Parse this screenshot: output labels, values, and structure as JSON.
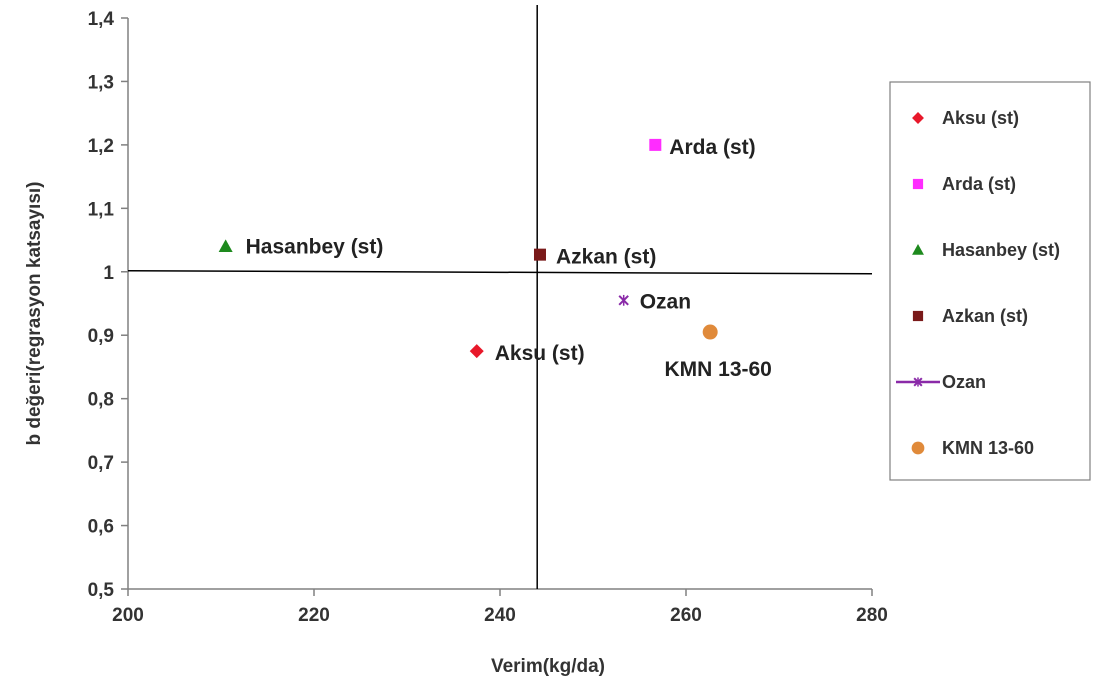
{
  "chart_data": {
    "type": "scatter",
    "xlabel": "Verim(kg/da)",
    "ylabel": "b değeri(regrasyon katsayısı)",
    "xlim": [
      200,
      280
    ],
    "ylim": [
      0.5,
      1.4
    ],
    "x_ticks": [
      "200",
      "220",
      "240",
      "260",
      "280"
    ],
    "y_ticks": [
      "0,5",
      "0,6",
      "0,7",
      "0,8",
      "0,9",
      "1",
      "1,1",
      "1,2",
      "1,3",
      "1,4"
    ],
    "reference_lines": {
      "vertical_x": 244,
      "horizontal_y": 1.0
    },
    "legend_position": "right",
    "series": [
      {
        "name": "Aksu (st)",
        "label": "Aksu (st)",
        "x": 237.5,
        "y": 0.875,
        "marker": "diamond",
        "color": "#e8182a"
      },
      {
        "name": "Arda (st)",
        "label": "Arda (st)",
        "x": 256.7,
        "y": 1.2,
        "marker": "square",
        "color": "#ff2cff"
      },
      {
        "name": "Hasanbey (st)",
        "label": "Hasanbey (st)",
        "x": 210.5,
        "y": 1.04,
        "marker": "triangle",
        "color": "#1e8a1e"
      },
      {
        "name": "Azkan (st)",
        "label": "Azkan (st)",
        "x": 244.3,
        "y": 1.027,
        "marker": "square",
        "color": "#7a1a1a"
      },
      {
        "name": "Ozan",
        "label": "Ozan",
        "x": 253.3,
        "y": 0.955,
        "marker": "star",
        "color": "#8a2aa8"
      },
      {
        "name": "KMN 13-60",
        "label": "KMN 13-60",
        "x": 262.6,
        "y": 0.905,
        "marker": "circle",
        "color": "#e08a3a"
      }
    ]
  }
}
